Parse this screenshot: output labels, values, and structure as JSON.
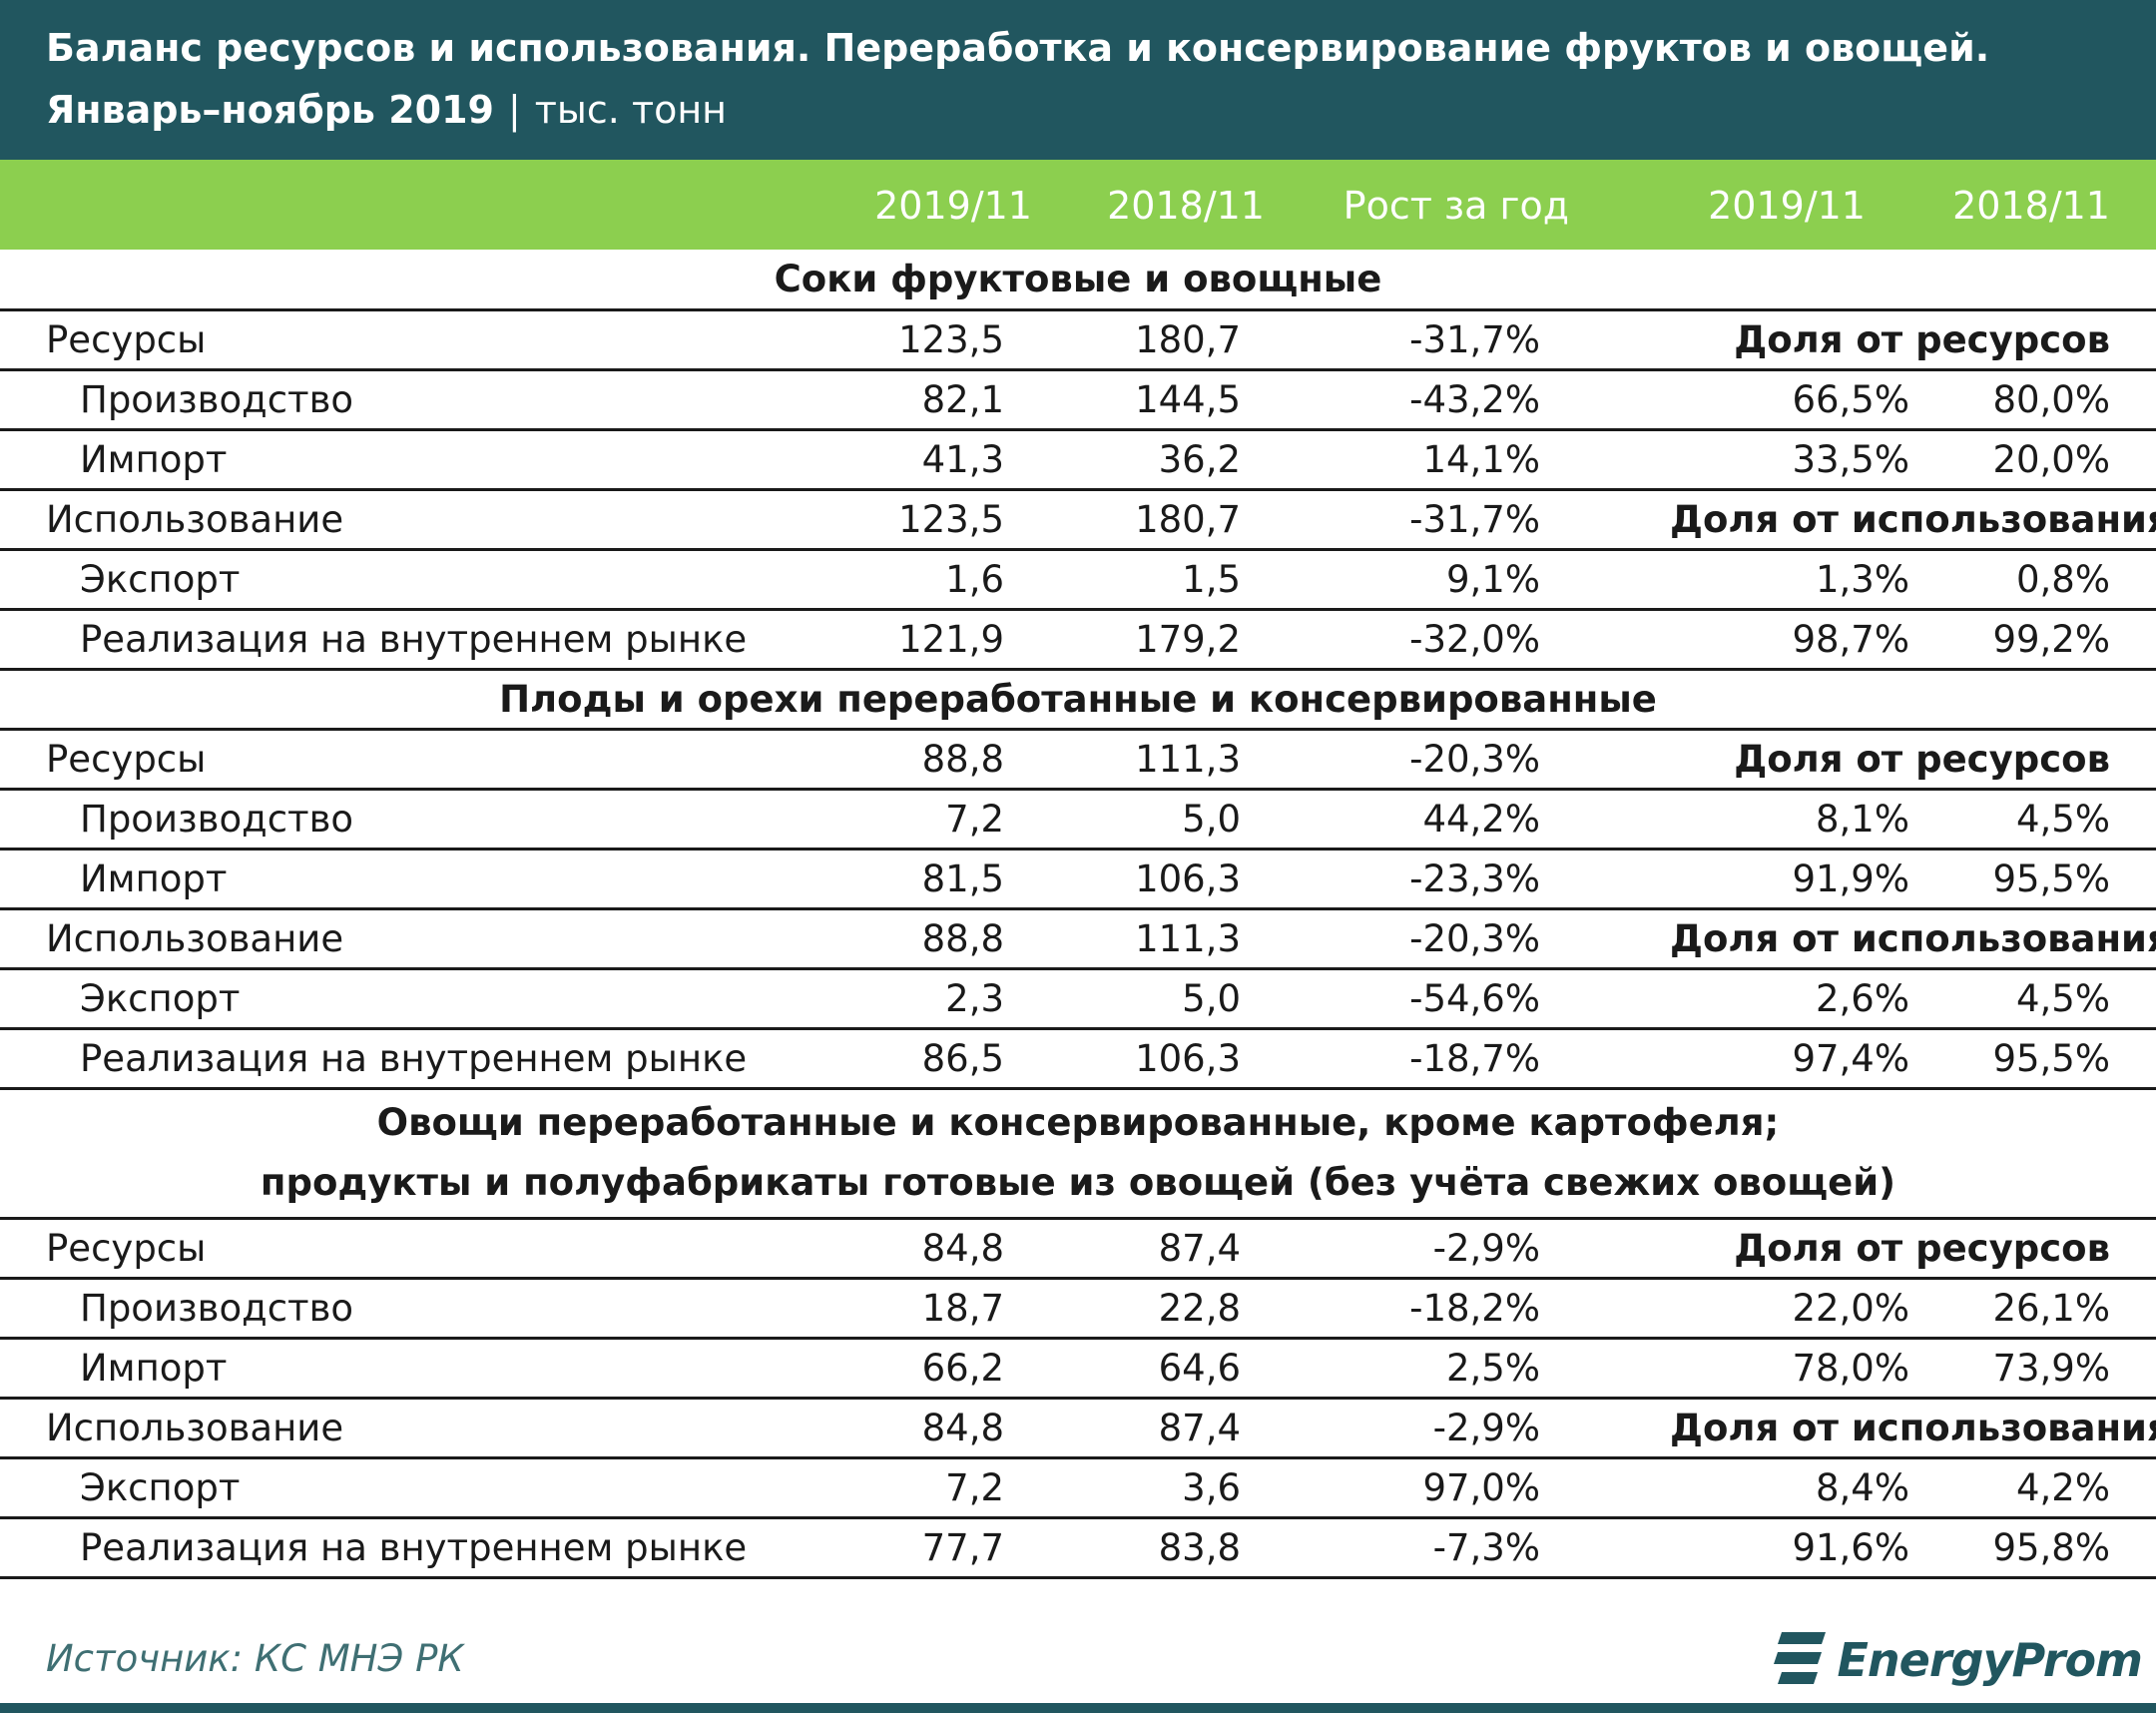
{
  "header": {
    "title_line1": "Баланс ресурсов и использования. Переработка и консервирование фруктов и овощей.",
    "title_line2_bold": "Январь–ноябрь 2019",
    "title_sep": "|",
    "title_unit": "тыс. тонн"
  },
  "columns": [
    "2019/11",
    "2018/11",
    "Рост за год",
    "2019/11",
    "2018/11"
  ],
  "colors": {
    "header_bg": "#21565f",
    "columns_bg": "#8ccf4f"
  },
  "chart_data": {
    "type": "table",
    "title": "Баланс ресурсов и использования. Переработка и консервирование фруктов и овощей. Январь–ноябрь 2019 | тыс. тонн",
    "sections": [
      {
        "title": "Соки фруктовые и овощные",
        "rows": [
          {
            "label": "Ресурсы",
            "v2019": "123,5",
            "v2018": "180,7",
            "growth": "-31,7%",
            "share_label": "Доля от ресурсов"
          },
          {
            "label": "Производство",
            "v2019": "82,1",
            "v2018": "144,5",
            "growth": "-43,2%",
            "s2019": "66,5%",
            "s2018": "80,0%"
          },
          {
            "label": "Импорт",
            "v2019": "41,3",
            "v2018": "36,2",
            "growth": "14,1%",
            "s2019": "33,5%",
            "s2018": "20,0%"
          },
          {
            "label": "Использование",
            "v2019": "123,5",
            "v2018": "180,7",
            "growth": "-31,7%",
            "share_label": "Доля от использования"
          },
          {
            "label": "Экспорт",
            "v2019": "1,6",
            "v2018": "1,5",
            "growth": "9,1%",
            "s2019": "1,3%",
            "s2018": "0,8%"
          },
          {
            "label": "Реализация на внутреннем рынке",
            "v2019": "121,9",
            "v2018": "179,2",
            "growth": "-32,0%",
            "s2019": "98,7%",
            "s2018": "99,2%"
          }
        ]
      },
      {
        "title": "Плоды и орехи переработанные и консервированные",
        "rows": [
          {
            "label": "Ресурсы",
            "v2019": "88,8",
            "v2018": "111,3",
            "growth": "-20,3%",
            "share_label": "Доля от ресурсов"
          },
          {
            "label": "Производство",
            "v2019": "7,2",
            "v2018": "5,0",
            "growth": "44,2%",
            "s2019": "8,1%",
            "s2018": "4,5%"
          },
          {
            "label": "Импорт",
            "v2019": "81,5",
            "v2018": "106,3",
            "growth": "-23,3%",
            "s2019": "91,9%",
            "s2018": "95,5%"
          },
          {
            "label": "Использование",
            "v2019": "88,8",
            "v2018": "111,3",
            "growth": "-20,3%",
            "share_label": "Доля от использования"
          },
          {
            "label": "Экспорт",
            "v2019": "2,3",
            "v2018": "5,0",
            "growth": "-54,6%",
            "s2019": "2,6%",
            "s2018": "4,5%"
          },
          {
            "label": "Реализация на внутреннем рынке",
            "v2019": "86,5",
            "v2018": "106,3",
            "growth": "-18,7%",
            "s2019": "97,4%",
            "s2018": "95,5%"
          }
        ]
      },
      {
        "title_line1": "Овощи переработанные и консервированные, кроме картофеля;",
        "title_line2": "продукты и полуфабрикаты готовые из овощей (без учёта свежих овощей)",
        "rows": [
          {
            "label": "Ресурсы",
            "v2019": "84,8",
            "v2018": "87,4",
            "growth": "-2,9%",
            "share_label": "Доля от ресурсов"
          },
          {
            "label": "Производство",
            "v2019": "18,7",
            "v2018": "22,8",
            "growth": "-18,2%",
            "s2019": "22,0%",
            "s2018": "26,1%"
          },
          {
            "label": "Импорт",
            "v2019": "66,2",
            "v2018": "64,6",
            "growth": "2,5%",
            "s2019": "78,0%",
            "s2018": "73,9%"
          },
          {
            "label": "Использование",
            "v2019": "84,8",
            "v2018": "87,4",
            "growth": "-2,9%",
            "share_label": "Доля от использования"
          },
          {
            "label": "Экспорт",
            "v2019": "7,2",
            "v2018": "3,6",
            "growth": "97,0%",
            "s2019": "8,4%",
            "s2018": "4,2%"
          },
          {
            "label": "Реализация на внутреннем рынке",
            "v2019": "77,7",
            "v2018": "83,8",
            "growth": "-7,3%",
            "s2019": "91,6%",
            "s2018": "95,8%"
          }
        ]
      }
    ]
  },
  "footer": {
    "source": "Источник: КС МНЭ РК",
    "logo": "EnergyProm",
    "logo_icon": "energyprom-logo-icon"
  }
}
